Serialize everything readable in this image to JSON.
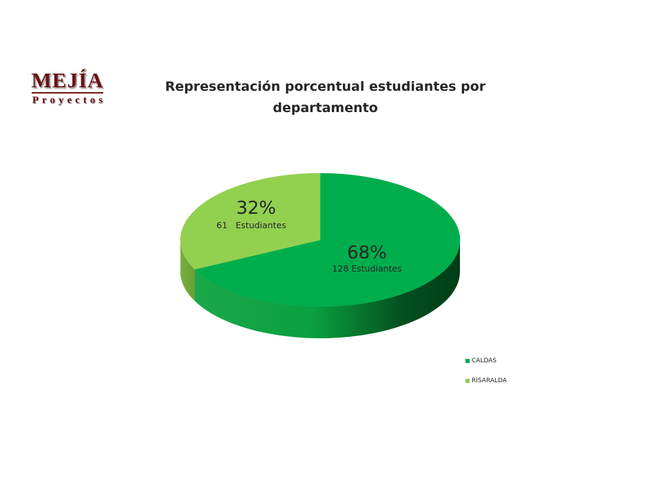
{
  "logo": {
    "main": "MEJÍA",
    "sub": "Proyectos"
  },
  "colors": {
    "caldas_top": "#00ad4d",
    "caldas_side_light": "#0a9f3f",
    "caldas_side_dark": "#003d17",
    "risaralda_top": "#92d050",
    "risaralda_side": "#6a9f36",
    "logo": "#6b1114"
  },
  "chart_data": {
    "type": "pie",
    "three_d": true,
    "title": "Representación porcentual estudiantes por departamento",
    "unit": "Estudiantes",
    "legend_position": "bottom-right",
    "series": [
      {
        "name": "CALDAS",
        "value": 128,
        "percent_label": "68%",
        "count_label": "128 Estudiantes",
        "color": "#00ad4d"
      },
      {
        "name": "RISARALDA",
        "value": 61,
        "percent_label": "32%",
        "count_label": "61   Estudiantes",
        "color": "#92d050"
      }
    ]
  }
}
